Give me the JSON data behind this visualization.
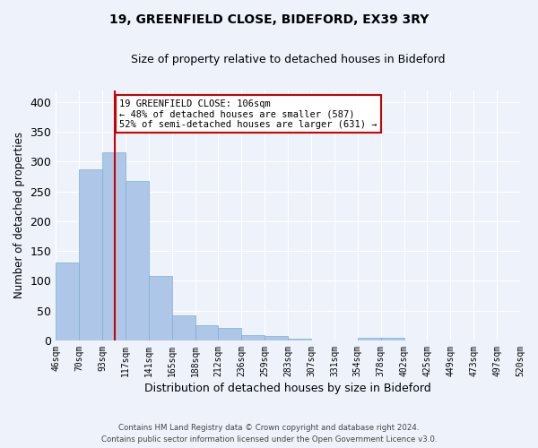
{
  "title": "19, GREENFIELD CLOSE, BIDEFORD, EX39 3RY",
  "subtitle": "Size of property relative to detached houses in Bideford",
  "xlabel": "Distribution of detached houses by size in Bideford",
  "ylabel": "Number of detached properties",
  "bar_values": [
    130,
    287,
    315,
    267,
    108,
    42,
    25,
    21,
    9,
    7,
    3,
    0,
    0,
    5,
    5,
    0,
    0,
    0,
    0,
    0
  ],
  "categories": [
    "46sqm",
    "70sqm",
    "93sqm",
    "117sqm",
    "141sqm",
    "165sqm",
    "188sqm",
    "212sqm",
    "236sqm",
    "259sqm",
    "283sqm",
    "307sqm",
    "331sqm",
    "354sqm",
    "378sqm",
    "402sqm",
    "425sqm",
    "449sqm",
    "473sqm",
    "497sqm",
    "520sqm"
  ],
  "bar_color": "#aec6e8",
  "bar_edge_color": "#7aafd4",
  "background_color": "#eef3fb",
  "grid_color": "#ffffff",
  "annotation_box_text": "19 GREENFIELD CLOSE: 106sqm\n← 48% of detached houses are smaller (587)\n52% of semi-detached houses are larger (631) →",
  "annotation_box_color": "#ffffff",
  "annotation_box_edge_color": "#cc0000",
  "red_line_color": "#cc0000",
  "footer_line1": "Contains HM Land Registry data © Crown copyright and database right 2024.",
  "footer_line2": "Contains public sector information licensed under the Open Government Licence v3.0.",
  "ylim": [
    0,
    420
  ],
  "yticks": [
    0,
    50,
    100,
    150,
    200,
    250,
    300,
    350,
    400
  ]
}
